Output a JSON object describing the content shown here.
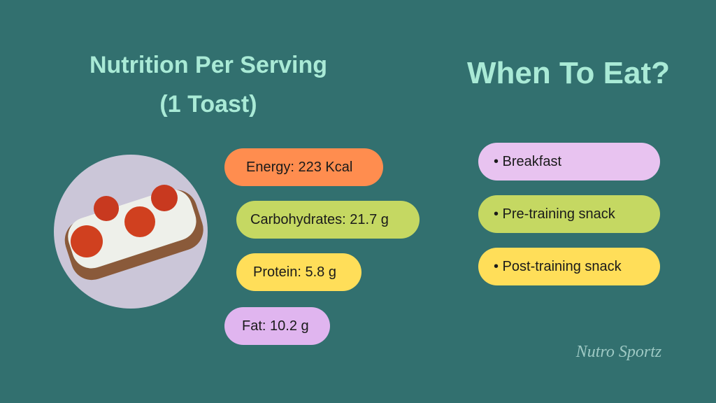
{
  "nutrition": {
    "title": [
      "Nutrition Per Serving",
      "(1 Toast)"
    ],
    "items": [
      "Energy: 223 Kcal",
      "Carbohydrates: 21.7 g",
      "Protein: 5.8 g",
      "Fat: 10.2 g"
    ]
  },
  "when_to_eat": {
    "title": "When To Eat?",
    "items": [
      "• Breakfast",
      "• Pre-training snack",
      "• Post-training snack"
    ]
  },
  "brand": "Nutro Sportz"
}
